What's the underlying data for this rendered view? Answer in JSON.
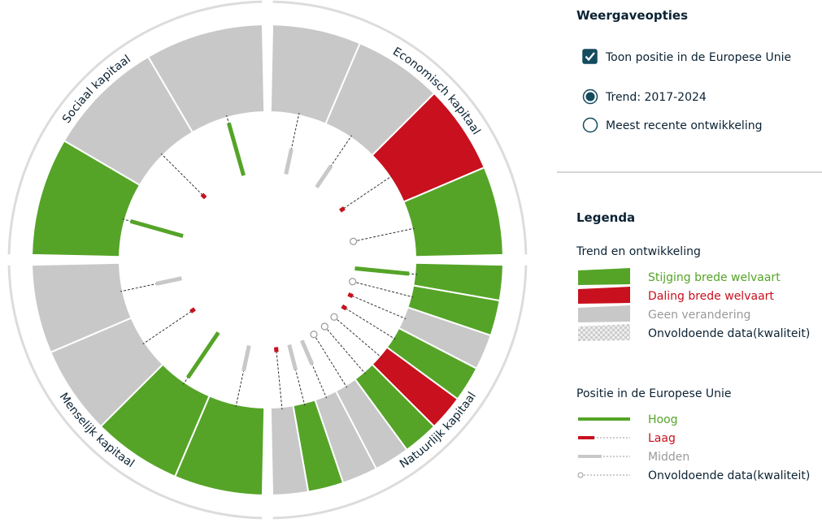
{
  "options": {
    "title": "Weergaveopties",
    "checkbox": {
      "label": "Toon positie in de Europese Unie",
      "checked": true
    },
    "radios": [
      {
        "label": "Trend: 2017-2024",
        "selected": true
      },
      {
        "label": "Meest recente ontwikkeling",
        "selected": false
      }
    ]
  },
  "legend": {
    "title": "Legenda",
    "trend_title": "Trend en ontwikkeling",
    "trend_items": [
      {
        "label": "Stijging brede welvaart",
        "color": "#55a428",
        "text_color": "#55a428"
      },
      {
        "label": "Daling brede welvaart",
        "color": "#c8101e",
        "text_color": "#c8101e"
      },
      {
        "label": "Geen verandering",
        "color": "#c8c8c8",
        "text_color": "#9a9a9a"
      },
      {
        "label": "Onvoldoende data(kwaliteit)",
        "color": "pattern",
        "text_color": "#0b2233"
      }
    ],
    "eu_title": "Positie in de Europese Unie",
    "eu_items": [
      {
        "label": "Hoog",
        "color": "#55a428",
        "text_color": "#55a428"
      },
      {
        "label": "Laag",
        "color": "#c8101e",
        "text_color": "#c8101e"
      },
      {
        "label": "Midden",
        "color": "#c8c8c8",
        "text_color": "#9a9a9a"
      },
      {
        "label": "Onvoldoende data(kwaliteit)",
        "color": "none",
        "text_color": "#0b2233"
      }
    ]
  },
  "wheel": {
    "quadrants": [
      {
        "label": "Sociaal kapitaal",
        "segments": [
          {
            "trend": "Stijging brede welvaart",
            "eu": "Hoog"
          },
          {
            "trend": "Geen verandering",
            "eu": "Laag"
          },
          {
            "trend": "Geen verandering",
            "eu": "Hoog"
          }
        ]
      },
      {
        "label": "Economisch kapitaal",
        "segments": [
          {
            "trend": "Geen verandering",
            "eu": "Midden"
          },
          {
            "trend": "Geen verandering",
            "eu": "Midden"
          },
          {
            "trend": "Daling brede welvaart",
            "eu": "Laag"
          },
          {
            "trend": "Stijging brede welvaart",
            "eu": "Onvoldoende data(kwaliteit)"
          }
        ]
      },
      {
        "label": "Natuurlijk kapitaal",
        "segments": [
          {
            "trend": "Stijging brede welvaart",
            "eu": "Hoog"
          },
          {
            "trend": "Stijging brede welvaart",
            "eu": "Onvoldoende data(kwaliteit)"
          },
          {
            "trend": "Geen verandering",
            "eu": "Laag"
          },
          {
            "trend": "Stijging brede welvaart",
            "eu": "Laag"
          },
          {
            "trend": "Daling brede welvaart",
            "eu": "Onvoldoende data(kwaliteit)"
          },
          {
            "trend": "Stijging brede welvaart",
            "eu": "Onvoldoende data(kwaliteit)"
          },
          {
            "trend": "Geen verandering",
            "eu": "Onvoldoende data(kwaliteit)"
          },
          {
            "trend": "Geen verandering",
            "eu": "Midden"
          },
          {
            "trend": "Stijging brede welvaart",
            "eu": "Midden"
          },
          {
            "trend": "Geen verandering",
            "eu": "Laag"
          }
        ]
      },
      {
        "label": "Menselijk kapitaal",
        "segments": [
          {
            "trend": "Stijging brede welvaart",
            "eu": "Midden"
          },
          {
            "trend": "Stijging brede welvaart",
            "eu": "Hoog"
          },
          {
            "trend": "Geen verandering",
            "eu": "Laag"
          },
          {
            "trend": "Geen verandering",
            "eu": "Midden"
          }
        ]
      }
    ]
  }
}
